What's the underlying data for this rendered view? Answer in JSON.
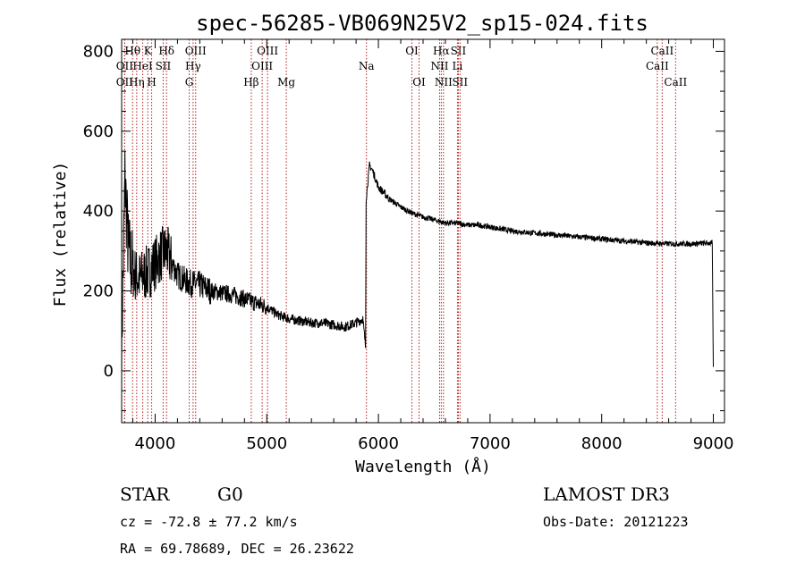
{
  "chart_data": {
    "type": "line",
    "title": "spec-56285-VB069N25V2_sp15-024.fits",
    "xlabel": "Wavelength (Å)",
    "ylabel": "Flux (relative)",
    "xlim": [
      3700,
      9100
    ],
    "ylim": [
      -130,
      830
    ],
    "x_ticks": [
      4000,
      5000,
      6000,
      7000,
      8000,
      9000
    ],
    "y_ticks": [
      0,
      200,
      400,
      600,
      800
    ],
    "line_color": "#000000",
    "marker_color": "#b22222",
    "spectrum_anchors": [
      [
        3700,
        60
      ],
      [
        3730,
        480
      ],
      [
        3760,
        300
      ],
      [
        3800,
        250
      ],
      [
        3850,
        230
      ],
      [
        3900,
        240
      ],
      [
        3950,
        250
      ],
      [
        4000,
        270
      ],
      [
        4050,
        290
      ],
      [
        4100,
        300
      ],
      [
        4150,
        270
      ],
      [
        4200,
        240
      ],
      [
        4300,
        220
      ],
      [
        4400,
        215
      ],
      [
        4500,
        200
      ],
      [
        4600,
        195
      ],
      [
        4700,
        190
      ],
      [
        4800,
        180
      ],
      [
        4900,
        170
      ],
      [
        5000,
        160
      ],
      [
        5100,
        140
      ],
      [
        5200,
        130
      ],
      [
        5300,
        125
      ],
      [
        5400,
        120
      ],
      [
        5500,
        120
      ],
      [
        5600,
        115
      ],
      [
        5700,
        110
      ],
      [
        5800,
        120
      ],
      [
        5860,
        130
      ],
      [
        5885,
        60
      ],
      [
        5890,
        430
      ],
      [
        5920,
        515
      ],
      [
        5950,
        500
      ],
      [
        6000,
        460
      ],
      [
        6100,
        430
      ],
      [
        6200,
        410
      ],
      [
        6300,
        395
      ],
      [
        6400,
        385
      ],
      [
        6500,
        378
      ],
      [
        6600,
        370
      ],
      [
        6700,
        370
      ],
      [
        6800,
        365
      ],
      [
        6900,
        365
      ],
      [
        7000,
        360
      ],
      [
        7200,
        350
      ],
      [
        7400,
        345
      ],
      [
        7600,
        340
      ],
      [
        7800,
        335
      ],
      [
        8000,
        330
      ],
      [
        8200,
        325
      ],
      [
        8400,
        320
      ],
      [
        8600,
        318
      ],
      [
        8800,
        318
      ],
      [
        8990,
        320
      ],
      [
        9000,
        5
      ]
    ],
    "line_markers": [
      {
        "label": "Hθ",
        "x": 3798,
        "row": 0
      },
      {
        "label": "OII",
        "x": 3727,
        "row": 1
      },
      {
        "label": "OII",
        "x": 3727,
        "row": 2
      },
      {
        "label": "K",
        "x": 3934,
        "row": 0
      },
      {
        "label": "HeI",
        "x": 3889,
        "row": 1
      },
      {
        "label": "Hη",
        "x": 3835,
        "row": 2
      },
      {
        "label": "Hδ",
        "x": 4102,
        "row": 0
      },
      {
        "label": "SII",
        "x": 4072,
        "row": 1
      },
      {
        "label": "H",
        "x": 3969,
        "row": 2
      },
      {
        "label": "OIII",
        "x": 4363,
        "row": 0
      },
      {
        "label": "Hγ",
        "x": 4340,
        "row": 1
      },
      {
        "label": "G",
        "x": 4305,
        "row": 2
      },
      {
        "label": "OIII",
        "x": 5007,
        "row": 0
      },
      {
        "label": "OIII",
        "x": 4959,
        "row": 1
      },
      {
        "label": "Hβ",
        "x": 4861,
        "row": 2
      },
      {
        "label": "Mg",
        "x": 5175,
        "row": 2
      },
      {
        "label": "Na",
        "x": 5893,
        "row": 1
      },
      {
        "label": "OI",
        "x": 6300,
        "row": 0
      },
      {
        "label": "OI",
        "x": 6364,
        "row": 2
      },
      {
        "label": "Hα",
        "x": 6563,
        "row": 0
      },
      {
        "label": "NII",
        "x": 6548,
        "row": 1
      },
      {
        "label": "NII",
        "x": 6583,
        "row": 2
      },
      {
        "label": "SII",
        "x": 6716,
        "row": 0
      },
      {
        "label": "Li",
        "x": 6708,
        "row": 1
      },
      {
        "label": "SII",
        "x": 6731,
        "row": 2
      },
      {
        "label": "CaII",
        "x": 8542,
        "row": 0
      },
      {
        "label": "CaII",
        "x": 8498,
        "row": 1
      },
      {
        "label": "CaII",
        "x": 8662,
        "row": 2
      }
    ]
  },
  "info": {
    "object_class": "STAR",
    "subclass": "G0",
    "survey": "LAMOST DR3",
    "redshift": "cz = -72.8 ± 77.2 km/s",
    "obs_date": "Obs-Date: 20121223",
    "coords": "RA =  69.78689, DEC =  26.23622"
  }
}
